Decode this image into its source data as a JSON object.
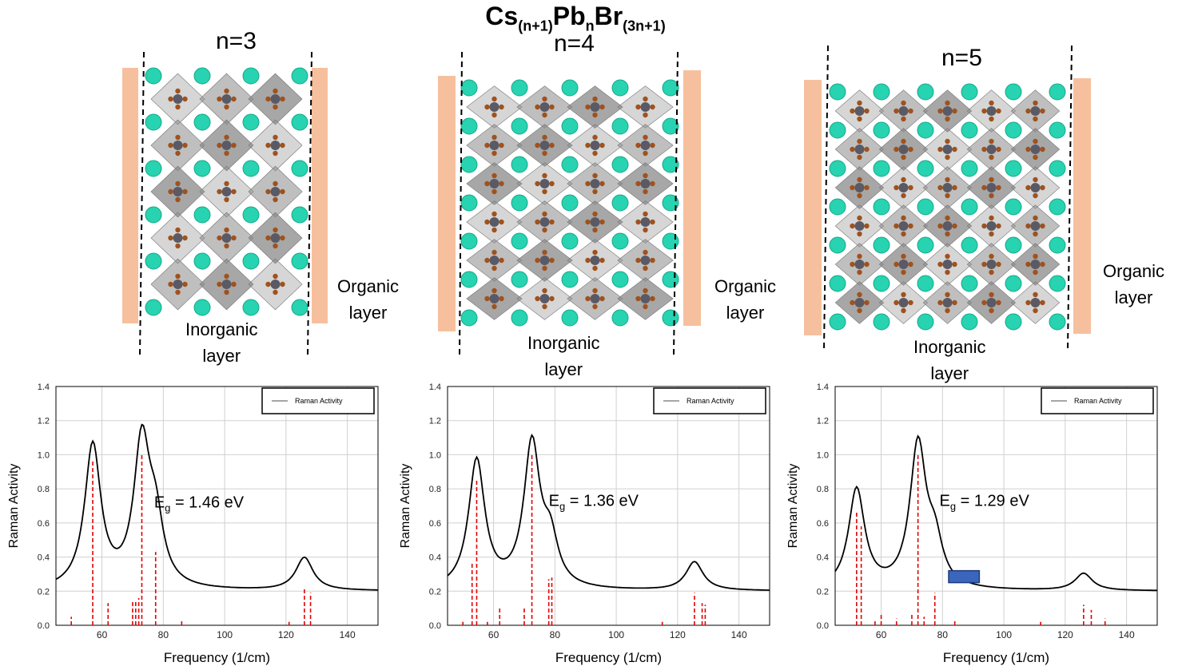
{
  "header": {
    "formula_base": "Cs",
    "formula_sub1": "(n+1)",
    "formula_mid": "Pb",
    "formula_sub2": "n",
    "formula_end": "Br",
    "formula_sub3": "(3n+1)"
  },
  "structures": [
    {
      "n_label": "n=3",
      "organic_line1": "Organic",
      "organic_line2": "layer",
      "inorganic_line1": "Inorganic",
      "inorganic_line2": "layer"
    },
    {
      "n_label": "n=4",
      "organic_line1": "Organic",
      "organic_line2": "layer",
      "inorganic_line1": "Inorganic",
      "inorganic_line2": "layer"
    },
    {
      "n_label": "n=5",
      "organic_line1": "Organic",
      "organic_line2": "layer",
      "inorganic_line1": "Inorganic",
      "inorganic_line2": "layer"
    }
  ],
  "colors": {
    "organic_slab": "#f6c09e",
    "cs_atom": "#27d3b0",
    "pb_atom": "#5a5a66",
    "br_atom": "#a0521d",
    "octahedron": "#8a8a8a",
    "stick_modes": "#e00000",
    "curve": "#000000"
  },
  "chart_data": [
    {
      "type": "line",
      "xlabel": "Frequency (1/cm)",
      "ylabel": "Raman Activity",
      "xlim": [
        45,
        150
      ],
      "ylim": [
        0,
        1.4
      ],
      "xticks": [
        60,
        80,
        100,
        120,
        140
      ],
      "yticks": [
        0.0,
        0.2,
        0.4,
        0.6,
        0.8,
        1.0,
        1.2,
        1.4
      ],
      "grid": true,
      "legend": "top-right",
      "series": [
        {
          "name": "Raman Activity",
          "peaks": [
            [
              57,
              1.0,
              3.2
            ],
            [
              73,
              1.0,
              3.2
            ],
            [
              77.5,
              0.4,
              3.0
            ],
            [
              126,
              0.23,
              3.4
            ]
          ],
          "baseline": 0.2
        }
      ],
      "stick_x": [
        50,
        57,
        62,
        70,
        71,
        72,
        73,
        77.5,
        86,
        121,
        126,
        128
      ],
      "stick_y": [
        0.05,
        0.97,
        0.13,
        0.14,
        0.15,
        0.16,
        1.0,
        0.43,
        0.03,
        0.02,
        0.22,
        0.19
      ],
      "annotation": {
        "prefix": "E",
        "sub": "g",
        "text": " = 1.46 eV",
        "at": [
          77,
          0.69
        ]
      }
    },
    {
      "type": "line",
      "xlabel": "Frequency (1/cm)",
      "ylabel": "Raman Activity",
      "xlim": [
        45,
        150
      ],
      "ylim": [
        0,
        1.4
      ],
      "xticks": [
        60,
        80,
        100,
        120,
        140
      ],
      "yticks": [
        0.0,
        0.2,
        0.4,
        0.6,
        0.8,
        1.0,
        1.2,
        1.4
      ],
      "grid": true,
      "legend": "top-right",
      "series": [
        {
          "name": "Raman Activity",
          "peaks": [
            [
              54.5,
              0.9,
              3.2
            ],
            [
              72.5,
              1.0,
              3.2
            ],
            [
              78.5,
              0.3,
              3.0
            ],
            [
              125.5,
              0.2,
              3.4
            ]
          ],
          "baseline": 0.2
        }
      ],
      "stick_x": [
        50,
        53,
        54.5,
        58,
        62,
        70,
        72.5,
        78,
        79,
        115,
        125.5,
        128,
        129
      ],
      "stick_y": [
        0.02,
        0.37,
        0.85,
        0.02,
        0.11,
        0.1,
        1.0,
        0.27,
        0.28,
        0.02,
        0.19,
        0.13,
        0.12
      ],
      "annotation": {
        "prefix": "E",
        "sub": "g",
        "text": " = 1.36 eV",
        "at": [
          78,
          0.7
        ]
      }
    },
    {
      "type": "line",
      "xlabel": "Frequency (1/cm)",
      "ylabel": "Raman Activity",
      "xlim": [
        45,
        150
      ],
      "ylim": [
        0,
        1.4
      ],
      "xticks": [
        60,
        80,
        100,
        120,
        140
      ],
      "yticks": [
        0.0,
        0.2,
        0.4,
        0.6,
        0.8,
        1.0,
        1.2,
        1.4
      ],
      "grid": true,
      "legend": "top-right",
      "series": [
        {
          "name": "Raman Activity",
          "peaks": [
            [
              52,
              0.7,
              3.2
            ],
            [
              72,
              1.0,
              3.2
            ],
            [
              77.5,
              0.28,
              3.0
            ],
            [
              126,
              0.12,
              3.4
            ]
          ],
          "baseline": 0.2
        }
      ],
      "stick_x": [
        52,
        53.5,
        58,
        60,
        65,
        70,
        72,
        74,
        77.5,
        84,
        112,
        126,
        128.5,
        133
      ],
      "stick_y": [
        0.67,
        0.58,
        0.03,
        0.06,
        0.04,
        0.07,
        1.0,
        0.05,
        0.19,
        0.03,
        0.02,
        0.12,
        0.09,
        0.04
      ],
      "annotation": {
        "prefix": "E",
        "sub": "g",
        "text": " = 1.29 eV",
        "at": [
          79,
          0.7
        ]
      },
      "marker": {
        "x": [
          82,
          92
        ],
        "y": [
          0.25,
          0.32
        ],
        "color": "#3a67bd"
      }
    }
  ]
}
